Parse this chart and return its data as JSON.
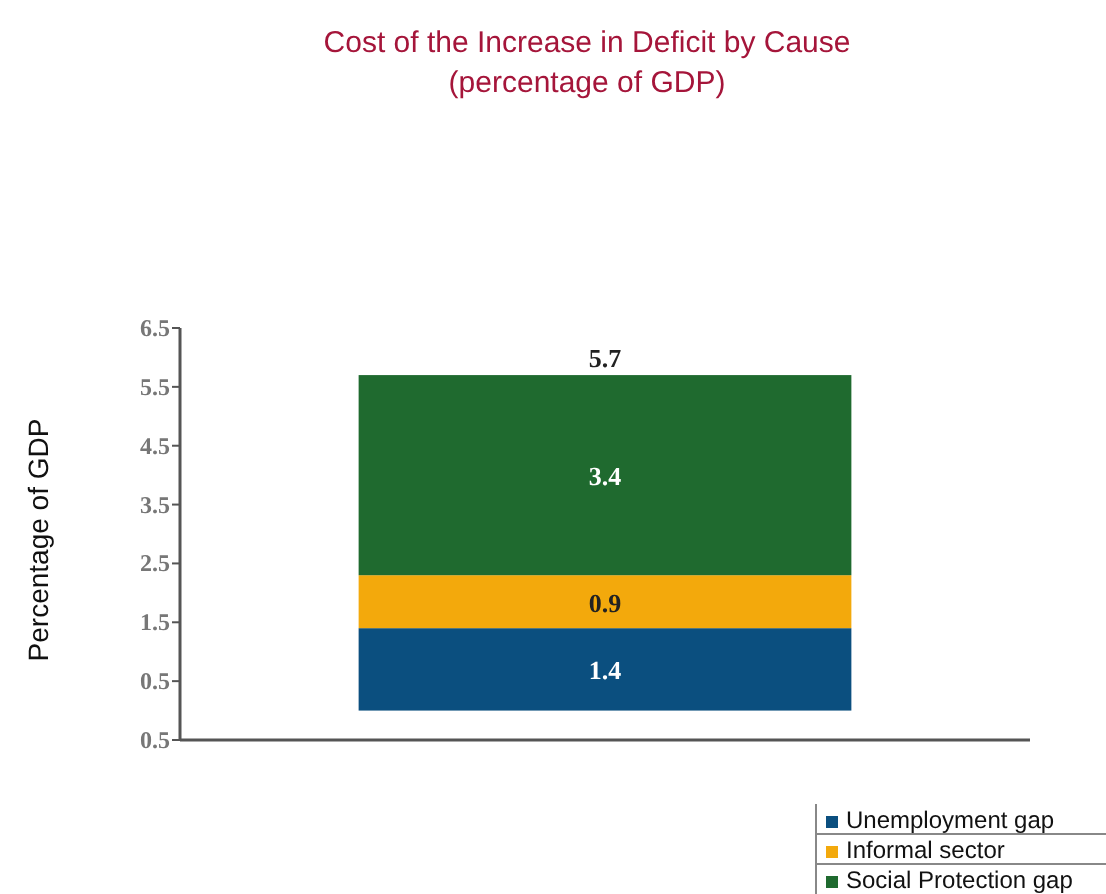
{
  "chart_data": {
    "type": "bar",
    "title": "Cost of the Increase in Deficit by Cause",
    "subtitle": "(percentage of GDP)",
    "ylabel": "Percentage of GDP",
    "categories": [
      null
    ],
    "stacked": true,
    "data_labels": true,
    "totals": [
      "5.7"
    ],
    "series": [
      {
        "name": "Unemployment gap",
        "color": "#0b4f7f",
        "values": [
          1.4
        ]
      },
      {
        "name": "Informal sector",
        "color": "#f3a90c",
        "values": [
          0.9
        ]
      },
      {
        "name": "Social Protection gap",
        "color": "#1f6a2f",
        "values": [
          3.4
        ]
      }
    ],
    "ylim": [
      -0.5,
      6.5
    ],
    "yticks": [
      {
        "value": -0.5,
        "label": "0.5"
      },
      0.5,
      1.5,
      2.5,
      3.5,
      4.5,
      5.5,
      6.5
    ],
    "grid": false,
    "legend": "bottom right"
  }
}
